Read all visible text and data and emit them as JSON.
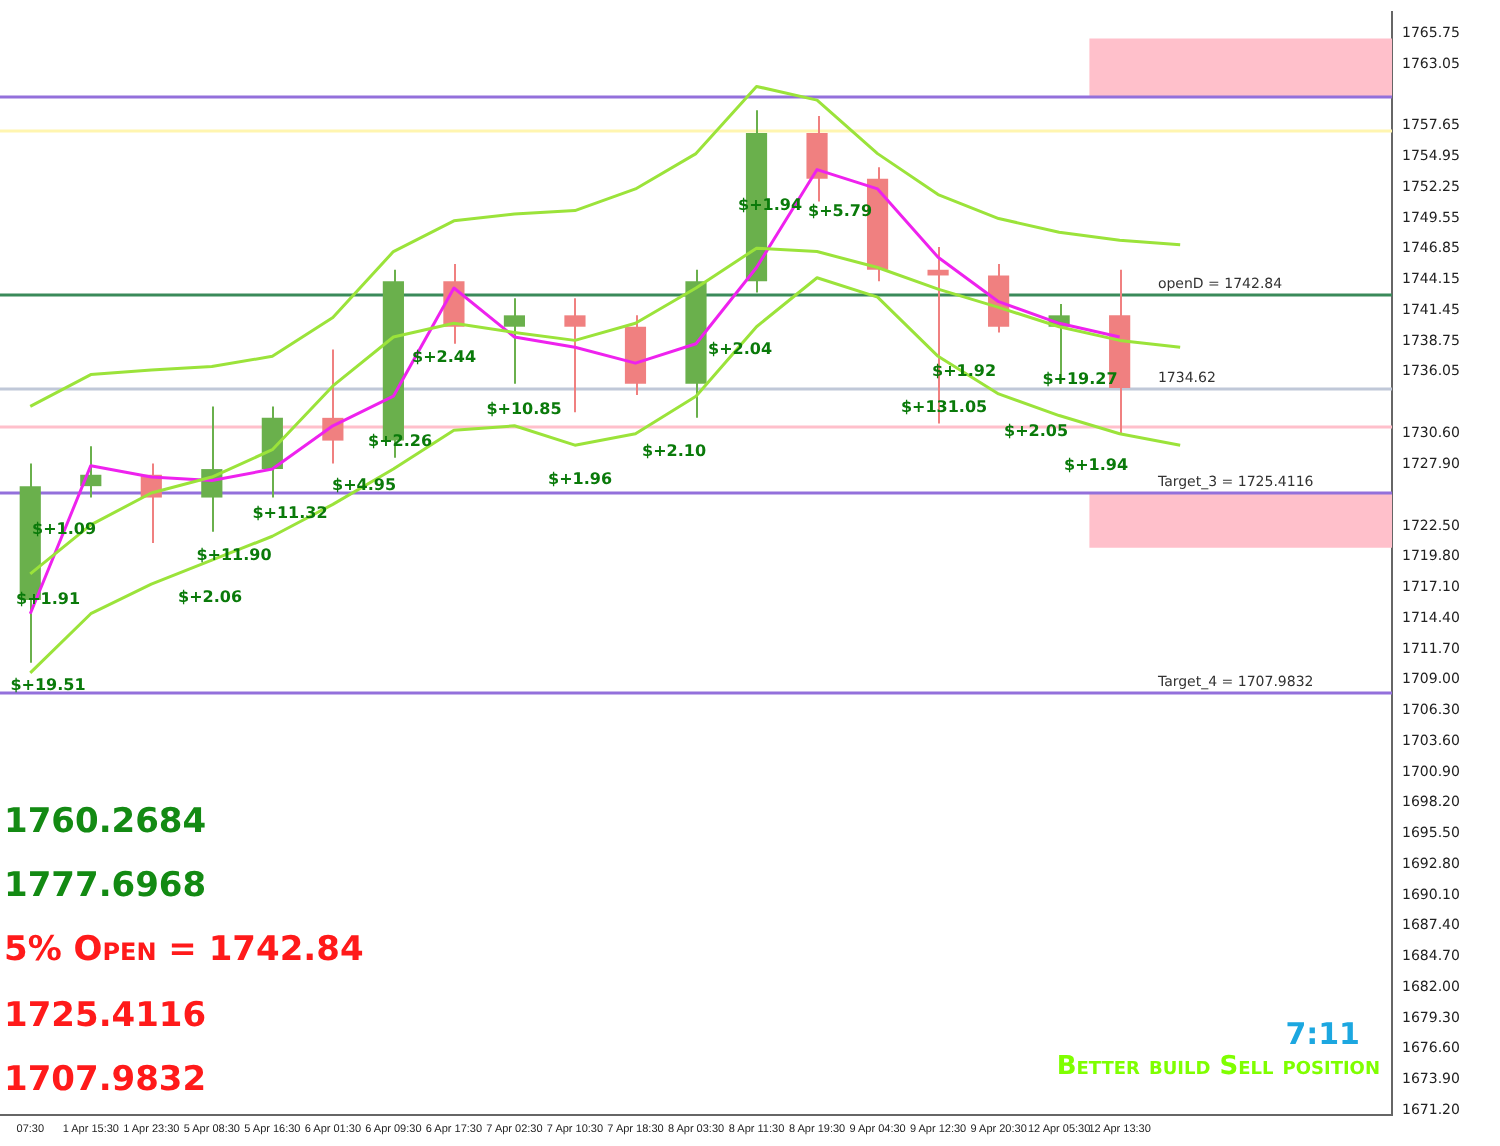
{
  "chart_data": {
    "type": "candlestick",
    "categories": [
      "07:30",
      "1 Apr 15:30",
      "1 Apr 23:30",
      "5 Apr 08:30",
      "5 Apr 16:30",
      "6 Apr 01:30",
      "6 Apr 09:30",
      "6 Apr 17:30",
      "7 Apr 02:30",
      "7 Apr 10:30",
      "7 Apr 18:30",
      "8 Apr 03:30",
      "8 Apr 11:30",
      "8 Apr 19:30",
      "9 Apr 04:30",
      "9 Apr 12:30",
      "9 Apr 20:30",
      "12 Apr 05:30",
      "12 Apr 13:30",
      null,
      null,
      null,
      null
    ],
    "ohlc": [
      [
        1716,
        1728,
        1710.5,
        1726
      ],
      [
        1726,
        1729.5,
        1725,
        1727
      ],
      [
        1727,
        1728,
        1721,
        1725
      ],
      [
        1725,
        1733,
        1722,
        1727.5
      ],
      [
        1727.5,
        1733,
        1725,
        1732
      ],
      [
        1732,
        1738,
        1728,
        1730
      ],
      [
        1730,
        1745,
        1728.5,
        1744
      ],
      [
        1744,
        1745.5,
        1738.5,
        1740
      ],
      [
        1740,
        1742.5,
        1735,
        1741
      ],
      [
        1741,
        1742.5,
        1732.5,
        1740
      ],
      [
        1740,
        1741,
        1734,
        1735
      ],
      [
        1735,
        1745,
        1732,
        1744
      ],
      [
        1744,
        1759,
        1743,
        1757
      ],
      [
        1757,
        1758.5,
        1751,
        1753
      ],
      [
        1753,
        1754,
        1744,
        1745
      ],
      [
        1745,
        1747,
        1731.5,
        1744.5
      ],
      [
        1744.5,
        1745.5,
        1739.5,
        1740
      ],
      [
        1740,
        1742,
        1735,
        1741
      ],
      [
        1741,
        1745,
        1730.5,
        1734.62
      ],
      null,
      null,
      null,
      null
    ],
    "colors": [
      "#6ab04c",
      "#6ab04c",
      "#f08080",
      "#6ab04c",
      "#6ab04c",
      "#f08080",
      "#6ab04c",
      "#f08080",
      "#6ab04c",
      "#f08080",
      "#f08080",
      "#6ab04c",
      "#6ab04c",
      "#f08080",
      "#f08080",
      "#f08080",
      "#f08080",
      "#6ab04c",
      "#f08080",
      null,
      null,
      null,
      null
    ],
    "series": [
      {
        "type": "line",
        "color": "#9be33a",
        "values": [
          1733,
          1735.8,
          1736.2,
          1736.5,
          1737.4,
          1740.8,
          1746.6,
          1749.3,
          1749.9,
          1750.2,
          1752.1,
          1755.2,
          1761.1,
          1759.9,
          1755.2,
          1751.6,
          1749.5,
          1748.3,
          1747.6,
          1747.2,
          null,
          null,
          null
        ]
      },
      {
        "type": "line",
        "color": "#9be33a",
        "values": [
          1718.3,
          1722.6,
          1725.4,
          1726.8,
          1729.2,
          1734.8,
          1739.1,
          1740.3,
          1739.5,
          1738.8,
          1740.3,
          1743.4,
          1746.9,
          1746.6,
          1745.2,
          1743.3,
          1741.7,
          1740,
          1738.8,
          1738.2,
          null,
          null,
          null
        ]
      },
      {
        "type": "line",
        "color": "#9be33a",
        "values": [
          1709.6,
          1714.8,
          1717.4,
          1719.5,
          1721.6,
          1724.4,
          1727.5,
          1730.9,
          1731.3,
          1729.6,
          1730.6,
          1733.9,
          1740,
          1744.3,
          1742.6,
          1737.4,
          1734.1,
          1732.2,
          1730.6,
          1729.6,
          null,
          null,
          null
        ]
      },
      {
        "type": "line",
        "color": "#ee22ee",
        "values": [
          1714.8,
          1727.8,
          1726.8,
          1726.5,
          1727.5,
          1731.3,
          1733.9,
          1743.4,
          1739.1,
          1738.2,
          1736.8,
          1738.5,
          1745.2,
          1753.8,
          1752.1,
          1746.1,
          1742.2,
          1740.3,
          1739.1,
          null,
          null,
          null,
          null
        ]
      }
    ],
    "ylim": [
      1670.8,
      1767.6
    ],
    "yticks": [
      {
        "value": 1765.75,
        "label": "1765.75"
      },
      {
        "value": 1763.05,
        "label": "1763.05"
      },
      {
        "value": 1757.65,
        "label": "1757.65"
      },
      {
        "value": 1754.95,
        "label": "1754.95"
      },
      {
        "value": 1752.25,
        "label": "1752.25"
      },
      {
        "value": 1749.55,
        "label": "1749.55"
      },
      {
        "value": 1746.85,
        "label": "1746.85"
      },
      {
        "value": 1744.15,
        "label": "1744.15"
      },
      {
        "value": 1741.45,
        "label": "1741.45"
      },
      {
        "value": 1738.75,
        "label": "1738.75"
      },
      {
        "value": 1736.05,
        "label": "1736.05"
      },
      {
        "value": 1730.6,
        "label": "1730.60"
      },
      {
        "value": 1727.9,
        "label": "1727.90"
      },
      {
        "value": 1722.5,
        "label": "1722.50"
      },
      {
        "value": 1719.8,
        "label": "1719.80"
      },
      {
        "value": 1717.1,
        "label": "1717.10"
      },
      {
        "value": 1714.4,
        "label": "1714.40"
      },
      {
        "value": 1711.7,
        "label": "1711.70"
      },
      {
        "value": 1709,
        "label": "1709.00"
      },
      {
        "value": 1706.3,
        "label": "1706.30"
      },
      {
        "value": 1703.6,
        "label": "1703.60"
      },
      {
        "value": 1700.9,
        "label": "1700.90"
      },
      {
        "value": 1698.2,
        "label": "1698.20"
      },
      {
        "value": 1695.5,
        "label": "1695.50"
      },
      {
        "value": 1692.8,
        "label": "1692.80"
      },
      {
        "value": 1690.1,
        "label": "1690.10"
      },
      {
        "value": 1687.4,
        "label": "1687.40"
      },
      {
        "value": 1684.7,
        "label": "1684.70"
      },
      {
        "value": 1682,
        "label": "1682.00"
      },
      {
        "value": 1679.3,
        "label": "1679.30"
      },
      {
        "value": 1676.6,
        "label": "1676.60"
      },
      {
        "value": 1673.9,
        "label": "1673.90"
      },
      {
        "value": 1671.2,
        "label": "1671.20"
      }
    ],
    "ref_lines": [
      {
        "axis": "y",
        "value": 1760.2684,
        "label": null,
        "color": "#9370db"
      },
      {
        "axis": "y",
        "value": 1757.3,
        "label": null,
        "color": "#fff5b0"
      },
      {
        "axis": "y",
        "value": 1742.84,
        "label": "openD = 1742.84",
        "color": "#3a8a5a"
      },
      {
        "axis": "y",
        "value": 1734.62,
        "label": "1734.62",
        "color": "#c0c8d8"
      },
      {
        "axis": "y",
        "value": 1731.3,
        "label": null,
        "color": "#ffc0cb"
      },
      {
        "axis": "y",
        "value": 1725.4116,
        "label": "Target_3 = 1725.4116",
        "color": "#9370db"
      },
      {
        "axis": "y",
        "value": 1707.9832,
        "label": "Target_4 = 1707.9832",
        "color": "#9370db"
      }
    ],
    "bands": [
      {
        "axis": "y",
        "from": 1760.2684,
        "to": 1765.3,
        "label": null,
        "color": "#ffc0cb"
      },
      {
        "axis": "y",
        "from": 1720.6,
        "to": 1725.4116,
        "label": null,
        "color": "#ffc0cb"
      }
    ],
    "annotations": [
      "1760.2684",
      "1777.6968",
      "5% Open = 1742.84",
      "1725.4116",
      "1707.9832",
      "7:11",
      "Better build Sell position",
      "$+19.51",
      "$+1.91",
      "$+1.09",
      "$+2.06",
      "$+11.90",
      "$+11.32",
      "$+4.95",
      "$+2.26",
      "$+2.44",
      "$+10.85",
      "$+1.96",
      "$+2.10",
      "$+2.04",
      "$+1.94",
      "$+5.79",
      "$+131.05",
      "$+1.92",
      "$+2.05",
      "$+19.27",
      "$+1.94"
    ],
    "grid": false,
    "legend": false
  }
}
